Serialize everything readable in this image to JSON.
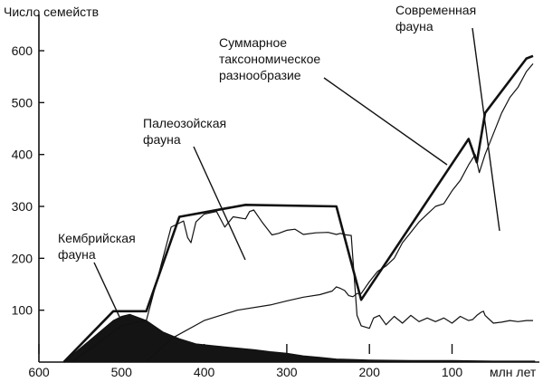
{
  "chart_data": {
    "type": "line",
    "title": "",
    "ylabel": "Число семейств",
    "xlabel": "млн лет",
    "x_reversed": true,
    "xlim": [
      600,
      0
    ],
    "ylim": [
      0,
      650
    ],
    "x_ticks": [
      600,
      500,
      400,
      300,
      200,
      100
    ],
    "y_ticks": [
      100,
      200,
      300,
      400,
      500,
      600
    ],
    "annotations": [
      {
        "lines": [
          "Кембрийская",
          "фауна"
        ]
      },
      {
        "lines": [
          "Палеозойская",
          "фауна"
        ]
      },
      {
        "lines": [
          "Суммарное",
          "таксономическое",
          "разнообразие"
        ]
      },
      {
        "lines": [
          "Современная",
          "фауна"
        ]
      }
    ],
    "series": [
      {
        "role": "total",
        "x": [
          570,
          510,
          470,
          430,
          350,
          240,
          210,
          80,
          70,
          60,
          10,
          2
        ],
        "y": [
          0,
          98,
          98,
          280,
          303,
          300,
          120,
          430,
          385,
          480,
          585,
          590
        ]
      },
      {
        "role": "paleozoic",
        "x": [
          560,
          500,
          470,
          440,
          425,
          420,
          416,
          410,
          400,
          385,
          375,
          365,
          350,
          345,
          340,
          330,
          318,
          310,
          300,
          290,
          280,
          265,
          250,
          240,
          235,
          228,
          222,
          220,
          215,
          210,
          200,
          195,
          188,
          180,
          170,
          160,
          150,
          140,
          130,
          120,
          110,
          100,
          90,
          80,
          75,
          70,
          65,
          62,
          60,
          50,
          40,
          30,
          20,
          10,
          2
        ],
        "y": [
          0,
          70,
          80,
          260,
          272,
          240,
          230,
          270,
          285,
          290,
          260,
          280,
          276,
          290,
          293,
          270,
          245,
          248,
          254,
          256,
          246,
          249,
          250,
          246,
          248,
          245,
          244,
          200,
          90,
          70,
          65,
          85,
          90,
          72,
          88,
          75,
          90,
          78,
          85,
          78,
          85,
          75,
          88,
          80,
          82,
          90,
          96,
          98,
          90,
          75,
          77,
          80,
          78,
          80,
          80
        ]
      },
      {
        "role": "modern",
        "x": [
          470,
          440,
          400,
          360,
          320,
          300,
          280,
          260,
          245,
          240,
          235,
          230,
          225,
          220,
          215,
          210,
          200,
          190,
          180,
          170,
          160,
          150,
          140,
          130,
          120,
          110,
          100,
          90,
          80,
          72,
          67,
          60,
          50,
          40,
          30,
          20,
          10,
          2
        ],
        "y": [
          0,
          45,
          80,
          100,
          110,
          118,
          125,
          130,
          137,
          145,
          142,
          138,
          128,
          126,
          132,
          132,
          155,
          175,
          185,
          200,
          230,
          250,
          270,
          285,
          300,
          305,
          330,
          350,
          380,
          400,
          365,
          400,
          440,
          480,
          510,
          530,
          560,
          575
        ]
      },
      {
        "role": "cambrian",
        "x": [
          570,
          540,
          510,
          500,
          490,
          470,
          450,
          430,
          410,
          380,
          360,
          340,
          320,
          300,
          280,
          260,
          240,
          220,
          200,
          150,
          100,
          50,
          0
        ],
        "y": [
          0,
          40,
          80,
          88,
          92,
          80,
          58,
          45,
          35,
          30,
          27,
          24,
          20,
          17,
          12,
          9,
          6,
          5,
          4,
          3,
          3,
          2,
          2
        ]
      }
    ],
    "colors": {
      "ink": "#111111",
      "fill": "#141414",
      "background": "#ffffff"
    }
  }
}
